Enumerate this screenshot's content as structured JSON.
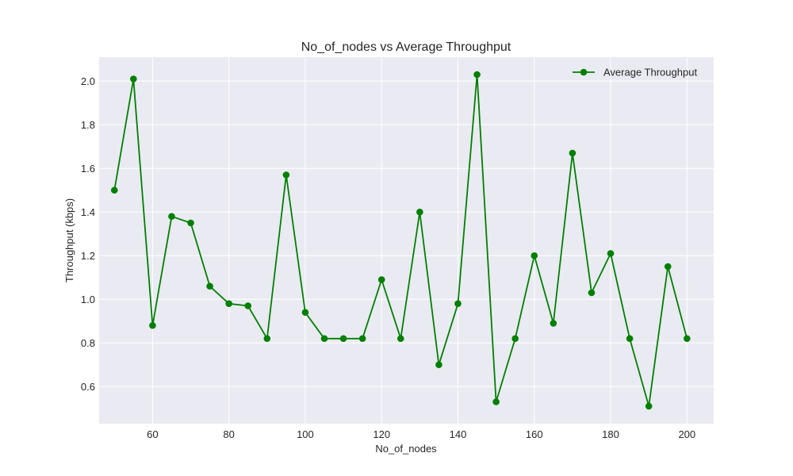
{
  "chart_data": {
    "type": "line",
    "title": "No_of_nodes vs Average Throughput",
    "xlabel": "No_of_nodes",
    "ylabel": "Throughput (kbps)",
    "xlim": [
      46,
      207
    ],
    "ylim": [
      0.43,
      2.11
    ],
    "xticks": [
      60,
      80,
      100,
      120,
      140,
      160,
      180,
      200
    ],
    "yticks": [
      0.6,
      0.8,
      1.0,
      1.2,
      1.4,
      1.6,
      1.8,
      2.0
    ],
    "ytick_labels": [
      "0.6",
      "0.8",
      "1.0",
      "1.2",
      "1.4",
      "1.6",
      "1.8",
      "2.0"
    ],
    "grid": true,
    "legend": {
      "position": "top-right"
    },
    "series": [
      {
        "name": "Average Throughput",
        "color": "#008000",
        "marker": "circle",
        "x": [
          50,
          55,
          60,
          65,
          70,
          75,
          80,
          85,
          90,
          95,
          100,
          105,
          110,
          115,
          120,
          125,
          130,
          135,
          140,
          145,
          150,
          155,
          160,
          165,
          170,
          175,
          180,
          185,
          190,
          195,
          200
        ],
        "y": [
          1.5,
          2.01,
          0.88,
          1.38,
          1.35,
          1.06,
          0.98,
          0.97,
          0.82,
          1.57,
          0.94,
          0.82,
          0.82,
          0.82,
          1.09,
          0.82,
          1.4,
          0.7,
          0.98,
          2.03,
          0.53,
          0.82,
          1.2,
          0.89,
          1.67,
          1.03,
          1.21,
          0.82,
          0.51,
          1.15,
          0.82
        ]
      }
    ]
  }
}
